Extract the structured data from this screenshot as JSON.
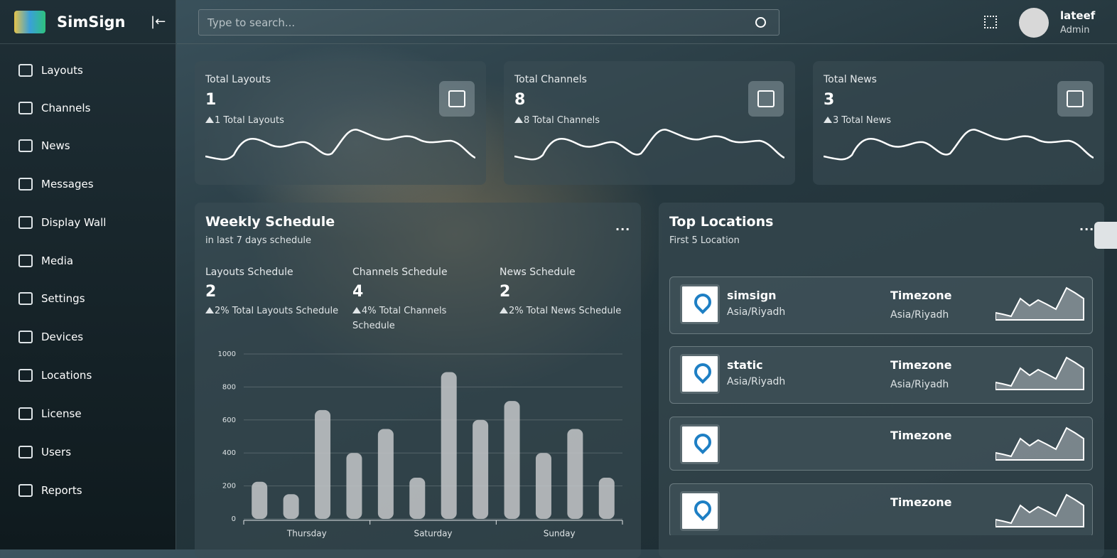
{
  "brand": {
    "name": "SimSign"
  },
  "search": {
    "placeholder": "Type to search..."
  },
  "user": {
    "name": "lateef",
    "role": "Admin"
  },
  "sidebar": {
    "items": [
      "Layouts",
      "Channels",
      "News",
      "Messages",
      "Display Wall",
      "Media",
      "Settings",
      "Devices",
      "Locations",
      "License",
      "Users",
      "Reports"
    ]
  },
  "stats": [
    {
      "title": "Total Layouts",
      "value": 1,
      "note": "1 Total Layouts"
    },
    {
      "title": "Total Channels",
      "value": 8,
      "note": "8 Total Channels"
    },
    {
      "title": "Total News",
      "value": 3,
      "note": "3 Total News"
    }
  ],
  "schedule": {
    "title": "Weekly Schedule",
    "subtitle": "in last 7 days schedule",
    "items": [
      {
        "label": "Layouts Schedule",
        "value": 2,
        "note": "2% Total Layouts Schedule"
      },
      {
        "label": "Channels Schedule",
        "value": 4,
        "note": "4% Total Channels Schedule"
      },
      {
        "label": "News Schedule",
        "value": 2,
        "note": "2% Total News Schedule"
      }
    ]
  },
  "chart_data": {
    "type": "bar",
    "categories": [
      "Thursday",
      "Saturday",
      "Sunday"
    ],
    "series": [
      {
        "color": "#c4c7c9",
        "values": [
          225,
          545,
          715
        ]
      },
      {
        "color": "#c4c7c9",
        "values": [
          150,
          250,
          400
        ]
      },
      {
        "color": "#c4c7c9",
        "values": [
          660,
          890,
          545
        ]
      },
      {
        "color": "#c4c7c9",
        "values": [
          400,
          600,
          250
        ]
      }
    ],
    "ylim": [
      0,
      1000
    ],
    "yticks": [
      0,
      200,
      400,
      600,
      800,
      1000
    ],
    "grid": true
  },
  "locations": {
    "title": "Top Locations",
    "subtitle": "First 5 Location",
    "items": [
      {
        "name": "simsign",
        "zone": "Asia/Riyadh",
        "timezone_label": "Timezone",
        "timezone": "Asia/Riyadh"
      },
      {
        "name": "static",
        "zone": "Asia/Riyadh",
        "timezone_label": "Timezone",
        "timezone": "Asia/Riyadh"
      },
      {
        "timezone_label": "Timezone"
      },
      {
        "timezone_label": "Timezone"
      }
    ]
  }
}
